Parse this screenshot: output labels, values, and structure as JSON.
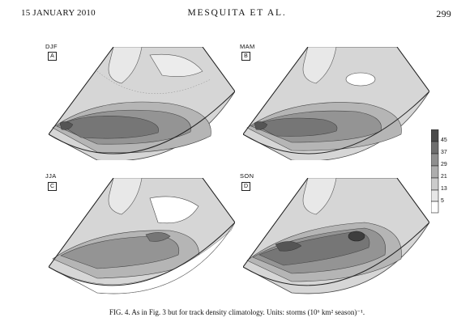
{
  "header": {
    "date": "15 JANUARY 2010",
    "authors": "MESQUITA ET AL.",
    "page": "299"
  },
  "panels": [
    {
      "season": "DJF",
      "label": "A"
    },
    {
      "season": "MAM",
      "label": "B"
    },
    {
      "season": "JJA",
      "label": "C"
    },
    {
      "season": "SON",
      "label": "D"
    }
  ],
  "colorbar": {
    "ticks": [
      "45",
      "37",
      "29",
      "21",
      "13",
      "5"
    ],
    "colors": [
      "#4a4a4a",
      "#6e6e6e",
      "#8e8e8e",
      "#adadad",
      "#cbcbcb",
      "#e6e6e6",
      "#ffffff"
    ]
  },
  "caption": "FIG. 4. As in Fig. 3 but for track density climatology. Units: storms (10⁶ km² season)⁻¹."
}
